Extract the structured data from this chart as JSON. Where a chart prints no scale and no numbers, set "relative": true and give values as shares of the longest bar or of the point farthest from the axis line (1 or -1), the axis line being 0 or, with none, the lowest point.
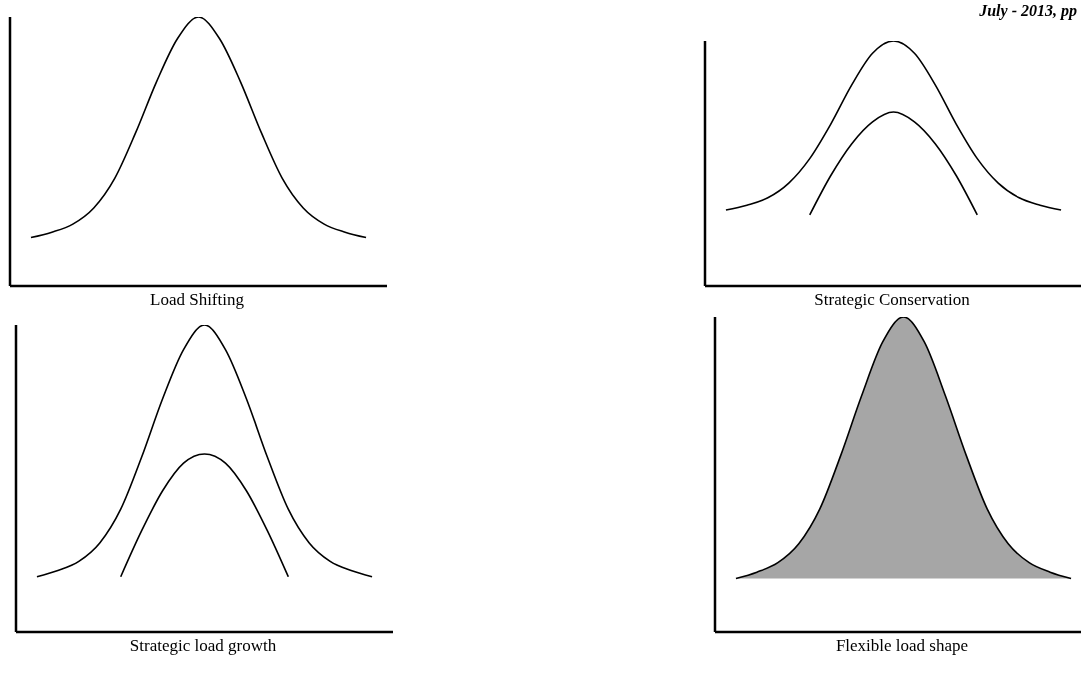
{
  "chart_data": [
    {
      "type": "line",
      "xlabel": "Load Shifting",
      "relative": true,
      "marker": "none",
      "line_style": "solid",
      "legend": false,
      "grid": false,
      "categories": [
        null,
        null,
        null,
        null,
        null,
        null,
        null,
        null,
        null,
        null,
        null,
        null,
        null,
        null,
        null,
        null,
        null,
        null,
        null
      ],
      "series": [
        {
          "color": "#000000",
          "values": [
            null,
            0.18,
            0.2,
            0.23,
            0.29,
            0.4,
            0.57,
            0.76,
            0.92,
            1,
            0.92,
            0.76,
            0.57,
            0.4,
            0.29,
            0.23,
            0.2,
            0.18,
            null
          ]
        }
      ]
    },
    {
      "type": "line",
      "xlabel": "Strategic Conservation",
      "relative": true,
      "marker": "none",
      "line_style": "solid",
      "legend": false,
      "grid": false,
      "annotations": [
        "July - 2013, pp"
      ],
      "categories": [
        null,
        null,
        null,
        null,
        null,
        null,
        null,
        null,
        null,
        null,
        null,
        null,
        null,
        null,
        null,
        null,
        null,
        null,
        null
      ],
      "series": [
        {
          "color": "#000000",
          "values": [
            null,
            0.31,
            0.33,
            0.36,
            0.42,
            0.52,
            0.66,
            0.82,
            0.95,
            1,
            0.95,
            0.82,
            0.66,
            0.52,
            0.42,
            0.36,
            0.33,
            0.31,
            null
          ]
        },
        {
          "color": "#000000",
          "values": [
            null,
            null,
            null,
            null,
            null,
            0.29,
            0.45,
            0.58,
            0.67,
            0.71,
            0.67,
            0.58,
            0.45,
            0.29,
            null,
            null,
            null,
            null,
            null
          ]
        }
      ]
    },
    {
      "type": "line",
      "xlabel": "Strategic load growth",
      "relative": true,
      "marker": "none",
      "line_style": "solid",
      "legend": false,
      "grid": false,
      "categories": [
        null,
        null,
        null,
        null,
        null,
        null,
        null,
        null,
        null,
        null,
        null,
        null,
        null,
        null,
        null,
        null,
        null,
        null,
        null
      ],
      "series": [
        {
          "color": "#000000",
          "values": [
            null,
            0.18,
            0.2,
            0.23,
            0.29,
            0.4,
            0.57,
            0.76,
            0.92,
            1,
            0.92,
            0.76,
            0.57,
            0.4,
            0.29,
            0.23,
            0.2,
            0.18,
            null
          ]
        },
        {
          "color": "#000000",
          "values": [
            null,
            null,
            null,
            null,
            null,
            0.18,
            0.33,
            0.46,
            0.55,
            0.58,
            0.55,
            0.46,
            0.33,
            0.18,
            null,
            null,
            null,
            null,
            null
          ]
        }
      ]
    },
    {
      "type": "area",
      "xlabel": "Flexible load shape",
      "relative": true,
      "marker": "none",
      "line_style": "solid",
      "legend": false,
      "grid": false,
      "categories": [
        null,
        null,
        null,
        null,
        null,
        null,
        null,
        null,
        null,
        null,
        null,
        null,
        null,
        null,
        null,
        null,
        null,
        null,
        null
      ],
      "series": [
        {
          "color": "#a6a6a6",
          "values": [
            null,
            0.17,
            0.19,
            0.22,
            0.28,
            0.39,
            0.56,
            0.75,
            0.92,
            1,
            0.92,
            0.75,
            0.56,
            0.39,
            0.28,
            0.22,
            0.19,
            0.17,
            null
          ]
        }
      ]
    }
  ]
}
